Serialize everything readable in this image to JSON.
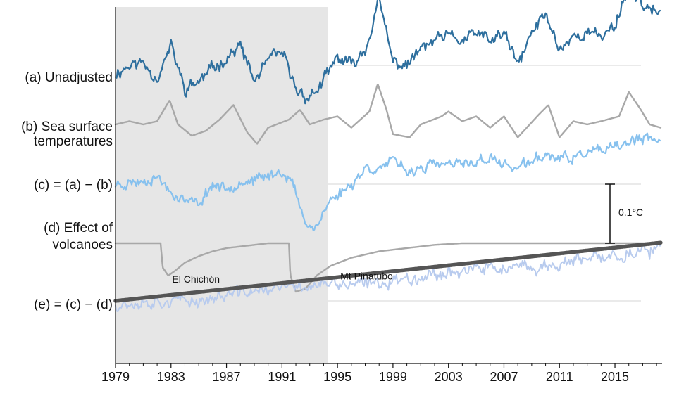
{
  "chart_data": {
    "type": "line",
    "title": "",
    "xlabel": "",
    "ylabel": "",
    "xlim": [
      1979,
      2018.4
    ],
    "x_ticks": [
      1979,
      1983,
      1987,
      1991,
      1995,
      1999,
      2003,
      2007,
      2011,
      2015
    ],
    "x_tick_labels": [
      "1979",
      "1983",
      "1987",
      "1991",
      "1995",
      "1999",
      "2003",
      "2007",
      "2011",
      "2015"
    ],
    "shaded_region": {
      "x_start": 1979,
      "x_end": 1994.3,
      "color": "#e6e6e6"
    },
    "row_labels": [
      {
        "id": "a",
        "lines": [
          "(a) Unadjusted"
        ]
      },
      {
        "id": "b",
        "lines": [
          "(b) Sea surface",
          "temperatures"
        ]
      },
      {
        "id": "c",
        "lines": [
          "(c) = (a) − (b)"
        ]
      },
      {
        "id": "d",
        "lines": [
          "(d) Effect of",
          "volcanoes"
        ]
      },
      {
        "id": "e",
        "lines": [
          "(e) = (c) − (d)"
        ]
      }
    ],
    "series": [
      {
        "name": "(a) Unadjusted",
        "color": "#2e6f9e",
        "baseline": 0.0,
        "noise": 0.06,
        "seed": 11,
        "points": [
          [
            1979,
            -0.05
          ],
          [
            1980,
            0.0
          ],
          [
            1981,
            0.02
          ],
          [
            1982,
            -0.08
          ],
          [
            1983,
            0.12
          ],
          [
            1984,
            -0.15
          ],
          [
            1985,
            -0.1
          ],
          [
            1986,
            -0.02
          ],
          [
            1987,
            0.05
          ],
          [
            1988,
            0.12
          ],
          [
            1989,
            -0.1
          ],
          [
            1990,
            0.03
          ],
          [
            1991,
            0.08
          ],
          [
            1992,
            -0.15
          ],
          [
            1993,
            -0.2
          ],
          [
            1994,
            -0.1
          ],
          [
            1995,
            0.05
          ],
          [
            1996,
            0.0
          ],
          [
            1997,
            0.1
          ],
          [
            1998,
            0.4
          ],
          [
            1999,
            0.02
          ],
          [
            2000,
            0.0
          ],
          [
            2001,
            0.1
          ],
          [
            2002,
            0.15
          ],
          [
            2003,
            0.18
          ],
          [
            2004,
            0.15
          ],
          [
            2005,
            0.2
          ],
          [
            2006,
            0.15
          ],
          [
            2007,
            0.2
          ],
          [
            2008,
            0.0
          ],
          [
            2009,
            0.2
          ],
          [
            2010,
            0.32
          ],
          [
            2011,
            0.1
          ],
          [
            2012,
            0.18
          ],
          [
            2013,
            0.2
          ],
          [
            2014,
            0.18
          ],
          [
            2015,
            0.25
          ],
          [
            2016,
            0.5
          ],
          [
            2017,
            0.38
          ],
          [
            2018.3,
            0.3
          ]
        ]
      },
      {
        "name": "(b) Sea surface temperatures",
        "color": "#a8a8a8",
        "baseline": 0.0,
        "noise": 0.0,
        "seed": 0,
        "points": [
          [
            1979,
            0.0
          ],
          [
            1980,
            0.02
          ],
          [
            1981,
            0.0
          ],
          [
            1982,
            0.02
          ],
          [
            1982.9,
            0.15
          ],
          [
            1983.5,
            0.0
          ],
          [
            1984.5,
            -0.07
          ],
          [
            1985.5,
            -0.04
          ],
          [
            1986.5,
            0.03
          ],
          [
            1987.5,
            0.12
          ],
          [
            1988.5,
            -0.05
          ],
          [
            1989.2,
            -0.12
          ],
          [
            1990,
            -0.02
          ],
          [
            1991.5,
            0.03
          ],
          [
            1992.3,
            0.09
          ],
          [
            1993,
            0.0
          ],
          [
            1994,
            0.03
          ],
          [
            1995,
            0.05
          ],
          [
            1996,
            -0.02
          ],
          [
            1997.3,
            0.08
          ],
          [
            1997.9,
            0.25
          ],
          [
            1998.5,
            0.1
          ],
          [
            1999,
            -0.06
          ],
          [
            2000.2,
            -0.08
          ],
          [
            2001,
            0.0
          ],
          [
            2002.5,
            0.05
          ],
          [
            2003,
            0.08
          ],
          [
            2004,
            0.02
          ],
          [
            2005,
            0.05
          ],
          [
            2006,
            -0.02
          ],
          [
            2007,
            0.05
          ],
          [
            2008,
            -0.08
          ],
          [
            2009.5,
            0.06
          ],
          [
            2010.2,
            0.12
          ],
          [
            2011,
            -0.08
          ],
          [
            2012,
            0.02
          ],
          [
            2013,
            0.0
          ],
          [
            2014,
            0.02
          ],
          [
            2015.3,
            0.05
          ],
          [
            2016,
            0.2
          ],
          [
            2016.8,
            0.1
          ],
          [
            2017.5,
            0.0
          ],
          [
            2018.3,
            -0.02
          ]
        ]
      },
      {
        "name": "(c) = (a) − (b)",
        "color": "#87c1ee",
        "baseline": 0.0,
        "noise": 0.05,
        "seed": 23,
        "points": [
          [
            1979,
            0.0
          ],
          [
            1981,
            0.02
          ],
          [
            1982,
            0.05
          ],
          [
            1983,
            -0.05
          ],
          [
            1984,
            -0.1
          ],
          [
            1985,
            -0.12
          ],
          [
            1986,
            0.0
          ],
          [
            1987,
            -0.03
          ],
          [
            1988,
            0.02
          ],
          [
            1989,
            0.02
          ],
          [
            1990,
            0.05
          ],
          [
            1991,
            0.08
          ],
          [
            1991.7,
            0.02
          ],
          [
            1992.5,
            -0.2
          ],
          [
            1993.3,
            -0.28
          ],
          [
            1994.5,
            -0.1
          ],
          [
            1996,
            0.0
          ],
          [
            1997,
            0.1
          ],
          [
            1998,
            0.1
          ],
          [
            1999,
            0.14
          ],
          [
            2000,
            0.08
          ],
          [
            2001,
            0.1
          ],
          [
            2002,
            0.12
          ],
          [
            2003,
            0.12
          ],
          [
            2004,
            0.12
          ],
          [
            2005,
            0.14
          ],
          [
            2006,
            0.16
          ],
          [
            2007,
            0.12
          ],
          [
            2008,
            0.1
          ],
          [
            2009,
            0.14
          ],
          [
            2010,
            0.18
          ],
          [
            2011,
            0.16
          ],
          [
            2012,
            0.16
          ],
          [
            2013,
            0.2
          ],
          [
            2014,
            0.2
          ],
          [
            2015,
            0.22
          ],
          [
            2016,
            0.26
          ],
          [
            2017,
            0.28
          ],
          [
            2018.3,
            0.26
          ]
        ]
      },
      {
        "name": "(d) Effect of volcanoes",
        "color": "#a8a8a8",
        "baseline": 0.0,
        "noise": 0.0,
        "seed": 0,
        "points": [
          [
            1979,
            0.0
          ],
          [
            1982.25,
            0.0
          ],
          [
            1982.4,
            -0.15
          ],
          [
            1982.8,
            -0.2
          ],
          [
            1983.3,
            -0.17
          ],
          [
            1984,
            -0.12
          ],
          [
            1985,
            -0.08
          ],
          [
            1986,
            -0.05
          ],
          [
            1987,
            -0.03
          ],
          [
            1988,
            -0.02
          ],
          [
            1989,
            -0.01
          ],
          [
            1990,
            0.0
          ],
          [
            1991.5,
            0.0
          ],
          [
            1991.6,
            -0.2
          ],
          [
            1992,
            -0.3
          ],
          [
            1992.7,
            -0.28
          ],
          [
            1993.5,
            -0.2
          ],
          [
            1994.5,
            -0.14
          ],
          [
            1996,
            -0.09
          ],
          [
            1998,
            -0.05
          ],
          [
            2000,
            -0.03
          ],
          [
            2002,
            -0.01
          ],
          [
            2004,
            0.0
          ],
          [
            2018.3,
            0.0
          ]
        ]
      },
      {
        "name": "(e) = (c) − (d)",
        "color": "#b8cbee",
        "baseline": 0.0,
        "noise": 0.06,
        "seed": 37,
        "points": [
          [
            1979,
            -0.02
          ],
          [
            1982,
            0.0
          ],
          [
            1985,
            0.0
          ],
          [
            1988,
            0.05
          ],
          [
            1991,
            0.08
          ],
          [
            1994,
            0.1
          ],
          [
            1997,
            0.1
          ],
          [
            2000,
            0.14
          ],
          [
            2003,
            0.18
          ],
          [
            2006,
            0.2
          ],
          [
            2009,
            0.2
          ],
          [
            2012,
            0.24
          ],
          [
            2015,
            0.28
          ],
          [
            2018.3,
            0.32
          ]
        ]
      },
      {
        "name": "(e) trend",
        "color": "#555555",
        "baseline": 0.0,
        "noise": 0.0,
        "seed": 0,
        "points": [
          [
            1979,
            0.0
          ],
          [
            2018.3,
            0.36
          ]
        ]
      }
    ],
    "annotations": [
      {
        "text": "El Chichón",
        "x": 1984.8,
        "series": "(d) Effect of volcanoes"
      },
      {
        "text": "Mt Pinatubo",
        "x": 1997.1,
        "series": "(d) Effect of volcanoes"
      },
      {
        "text": "0.1°C",
        "kind": "scale-bar",
        "value": 0.1
      }
    ]
  }
}
